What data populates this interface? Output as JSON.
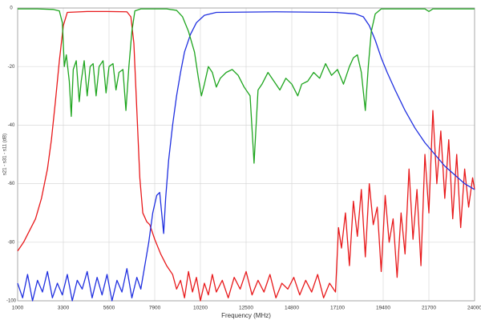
{
  "chart_data": {
    "type": "line",
    "xlabel": "Frequency (MHz)",
    "ylabel": "s21 - s31 - s11 (dB)",
    "xlim": [
      1000,
      24000
    ],
    "xticks": [
      1000,
      3300,
      5600,
      7900,
      10200,
      12500,
      14800,
      17100,
      19400,
      21700,
      24000
    ],
    "ylim": [
      -100,
      0
    ],
    "yticks": [
      0,
      -20,
      -40,
      -60,
      -80,
      -100
    ],
    "grid": true,
    "series": [
      {
        "color": "#e8191b",
        "x": [
          1000,
          1300,
          1600,
          1900,
          2200,
          2500,
          2700,
          2900,
          3100,
          3300,
          3500,
          4500,
          5500,
          6500,
          6700,
          6850,
          7000,
          7150,
          7300,
          7500,
          7650,
          7900,
          8200,
          8500,
          8800,
          9000,
          9200,
          9400,
          9600,
          9800,
          10000,
          10200,
          10400,
          10600,
          10800,
          11000,
          11300,
          11600,
          11900,
          12200,
          12500,
          12800,
          13100,
          13400,
          13700,
          14000,
          14300,
          14600,
          14900,
          15200,
          15500,
          15800,
          16100,
          16400,
          16700,
          17000,
          17150,
          17300,
          17500,
          17700,
          17900,
          18100,
          18300,
          18500,
          18700,
          18900,
          19100,
          19300,
          19500,
          19700,
          19900,
          20100,
          20300,
          20500,
          20700,
          20900,
          21100,
          21300,
          21500,
          21700,
          21900,
          22100,
          22300,
          22500,
          22700,
          22900,
          23100,
          23300,
          23500,
          23700,
          23900,
          24000
        ],
        "values": [
          -83,
          -80,
          -76,
          -72,
          -65,
          -55,
          -45,
          -32,
          -18,
          -6,
          -1.5,
          -1.2,
          -1.2,
          -1.3,
          -3,
          -12,
          -35,
          -58,
          -70,
          -73,
          -74,
          -79,
          -84,
          -88,
          -91,
          -96,
          -93,
          -99,
          -90,
          -97,
          -92,
          -100,
          -94,
          -98,
          -91,
          -97,
          -93,
          -99,
          -92,
          -96,
          -90,
          -98,
          -93,
          -97,
          -91,
          -99,
          -94,
          -96,
          -92,
          -98,
          -93,
          -97,
          -91,
          -99,
          -94,
          -97,
          -75,
          -82,
          -70,
          -88,
          -66,
          -78,
          -62,
          -85,
          -60,
          -74,
          -68,
          -90,
          -64,
          -80,
          -72,
          -92,
          -70,
          -84,
          -55,
          -79,
          -62,
          -88,
          -50,
          -70,
          -35,
          -60,
          -42,
          -65,
          -45,
          -72,
          -50,
          -75,
          -55,
          -68,
          -58,
          -62
        ]
      },
      {
        "color": "#1f2fe0",
        "x": [
          1000,
          1250,
          1500,
          1750,
          2000,
          2250,
          2500,
          2750,
          3000,
          3250,
          3500,
          3750,
          4000,
          4250,
          4500,
          4750,
          5000,
          5250,
          5500,
          5750,
          6000,
          6250,
          6500,
          6750,
          7000,
          7200,
          7400,
          7600,
          7800,
          8000,
          8150,
          8250,
          8350,
          8450,
          8600,
          8800,
          9000,
          9200,
          9400,
          9700,
          10000,
          10400,
          11000,
          14000,
          17000,
          18000,
          18400,
          18700,
          19000,
          19300,
          19600,
          20000,
          20500,
          21000,
          21500,
          22000,
          22500,
          23000,
          23500,
          24000
        ],
        "values": [
          -94,
          -99,
          -91,
          -100,
          -93,
          -97,
          -90,
          -99,
          -94,
          -98,
          -91,
          -100,
          -93,
          -96,
          -90,
          -99,
          -92,
          -98,
          -91,
          -100,
          -93,
          -97,
          -89,
          -99,
          -92,
          -96,
          -88,
          -80,
          -70,
          -64,
          -63,
          -70,
          -77,
          -65,
          -52,
          -40,
          -30,
          -22,
          -15,
          -9,
          -5,
          -2.5,
          -1.5,
          -1.3,
          -1.5,
          -2,
          -3,
          -6,
          -11,
          -17,
          -22,
          -28,
          -35,
          -41,
          -46,
          -50,
          -54,
          -57,
          -60,
          -62
        ]
      },
      {
        "color": "#1ea51e",
        "x": [
          1000,
          2000,
          2800,
          3100,
          3250,
          3350,
          3450,
          3600,
          3700,
          3800,
          3950,
          4100,
          4200,
          4350,
          4500,
          4650,
          4800,
          4950,
          5100,
          5300,
          5450,
          5600,
          5800,
          5950,
          6100,
          6300,
          6450,
          6600,
          6750,
          6900,
          7200,
          8500,
          9000,
          9300,
          9600,
          9900,
          10100,
          10250,
          10400,
          10600,
          10800,
          11000,
          11200,
          11500,
          11800,
          12100,
          12400,
          12700,
          12900,
          13100,
          13300,
          13600,
          13900,
          14200,
          14500,
          14800,
          15100,
          15300,
          15600,
          15900,
          16200,
          16500,
          16800,
          17100,
          17400,
          17700,
          17900,
          18100,
          18300,
          18500,
          18650,
          18800,
          19000,
          19300,
          21500,
          21700,
          21900,
          24000
        ],
        "values": [
          -0.3,
          -0.3,
          -0.5,
          -1,
          -5,
          -20,
          -16,
          -25,
          -37,
          -21,
          -18,
          -32,
          -25,
          -18,
          -30,
          -20,
          -19,
          -30,
          -20,
          -18,
          -29,
          -20,
          -19,
          -28,
          -22,
          -21,
          -35,
          -20,
          -8,
          -1,
          -0.3,
          -0.3,
          -0.8,
          -3,
          -8,
          -15,
          -24,
          -30,
          -26,
          -20,
          -22,
          -27,
          -24,
          -22,
          -21,
          -23,
          -27,
          -30,
          -53,
          -28,
          -26,
          -22,
          -25,
          -28,
          -24,
          -26,
          -30,
          -26,
          -25,
          -22,
          -24,
          -19,
          -23,
          -21,
          -26,
          -20,
          -17,
          -16,
          -22,
          -35,
          -20,
          -8,
          -2,
          -0.3,
          -0.3,
          -1.2,
          -0.3,
          -0.3
        ]
      }
    ]
  }
}
